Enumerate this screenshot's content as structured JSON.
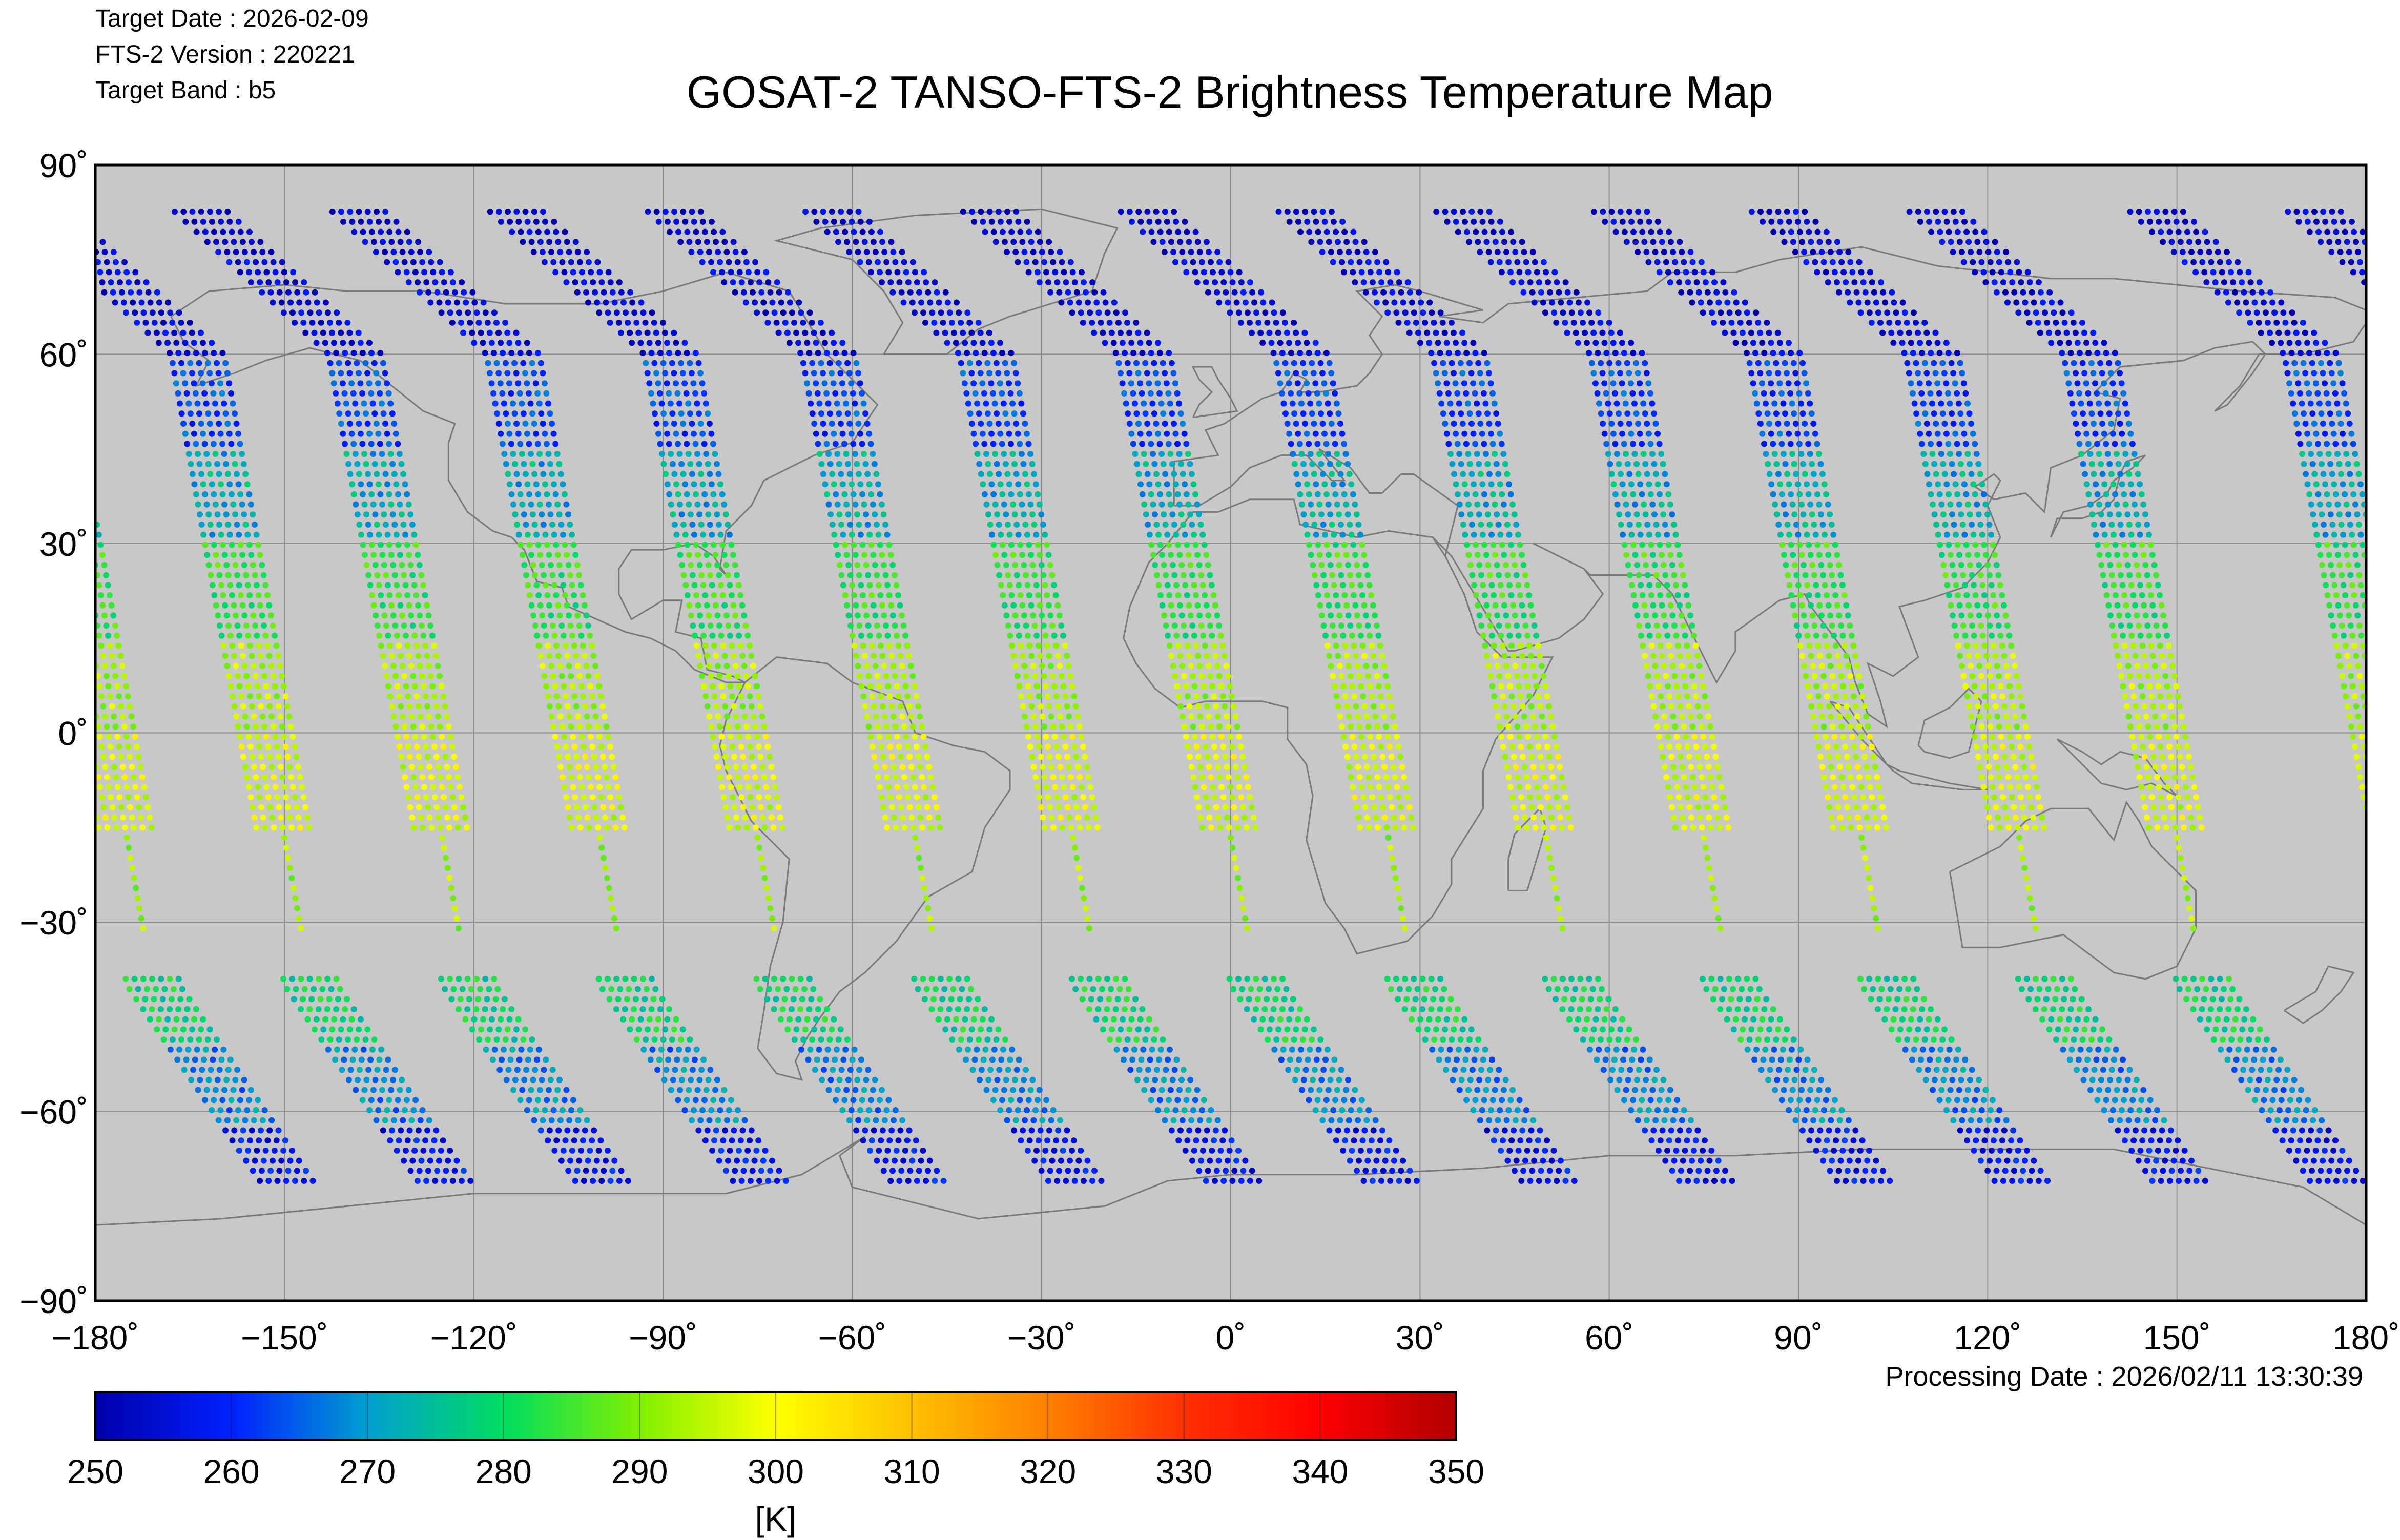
{
  "header": {
    "target_date_line": "Target Date   : 2026-02-09",
    "version_line": "FTS-2 Version : 220221",
    "band_line": "Target Band   : b5"
  },
  "processing_date": "Processing Date : 2026/02/11 13:30:39",
  "colors": {
    "map_background": "#c8c8c8",
    "coastline": "#7a7a7a",
    "gridline": "#8c8c8c"
  },
  "chart_data": {
    "type": "scatter",
    "title": "GOSAT-2 TANSO-FTS-2 Brightness Temperature Map",
    "xlabel": "",
    "ylabel": "",
    "xlim": [
      -180,
      180
    ],
    "ylim": [
      -90,
      90
    ],
    "grid": true,
    "x_ticks": [
      -180,
      -150,
      -120,
      -90,
      -60,
      -30,
      0,
      30,
      60,
      90,
      120,
      150,
      180
    ],
    "x_tick_labels": [
      "−180˚",
      "−150˚",
      "−120˚",
      "−90˚",
      "−60˚",
      "−30˚",
      "0˚",
      "30˚",
      "60˚",
      "90˚",
      "120˚",
      "150˚",
      "180˚"
    ],
    "y_ticks": [
      90,
      60,
      30,
      0,
      -30,
      -60,
      -90
    ],
    "y_tick_labels": [
      "90˚",
      "60˚",
      "30˚",
      "0˚",
      "−30˚",
      "−60˚",
      "−90˚"
    ],
    "colorbar": {
      "min": 250,
      "max": 350,
      "ticks": [
        250,
        260,
        270,
        280,
        290,
        300,
        310,
        320,
        330,
        340,
        350
      ],
      "tick_labels": [
        "250",
        "260",
        "270",
        "280",
        "290",
        "300",
        "310",
        "320",
        "330",
        "340",
        "350"
      ],
      "unit_label": "[K]",
      "colormap": "jet"
    },
    "orbit_tracks": [
      {
        "equator_lon": -178
      },
      {
        "equator_lon": -153
      },
      {
        "equator_lon": -128
      },
      {
        "equator_lon": -103
      },
      {
        "equator_lon": -78
      },
      {
        "equator_lon": -53
      },
      {
        "equator_lon": -28
      },
      {
        "equator_lon": -3
      },
      {
        "equator_lon": 22
      },
      {
        "equator_lon": 47
      },
      {
        "equator_lon": 72
      },
      {
        "equator_lon": 97
      },
      {
        "equator_lon": 122
      },
      {
        "equator_lon": 147
      }
    ],
    "brightness_temperature_K_by_latitude_band": [
      {
        "lat_range": [
          75,
          83
        ],
        "value": 252
      },
      {
        "lat_range": [
          60,
          75
        ],
        "value": 254
      },
      {
        "lat_range": [
          45,
          60
        ],
        "value": 262
      },
      {
        "lat_range": [
          30,
          45
        ],
        "value": 272
      },
      {
        "lat_range": [
          15,
          30
        ],
        "value": 283
      },
      {
        "lat_range": [
          0,
          15
        ],
        "value": 293
      },
      {
        "lat_range": [
          -15,
          0
        ],
        "value": 297
      },
      {
        "lat_range": [
          -31,
          -15
        ],
        "value": 292
      },
      {
        "lat_range": [
          -50,
          -38
        ],
        "value": 279
      },
      {
        "lat_range": [
          -62,
          -50
        ],
        "value": 268
      },
      {
        "lat_range": [
          -71,
          -62
        ],
        "value": 257
      }
    ]
  }
}
